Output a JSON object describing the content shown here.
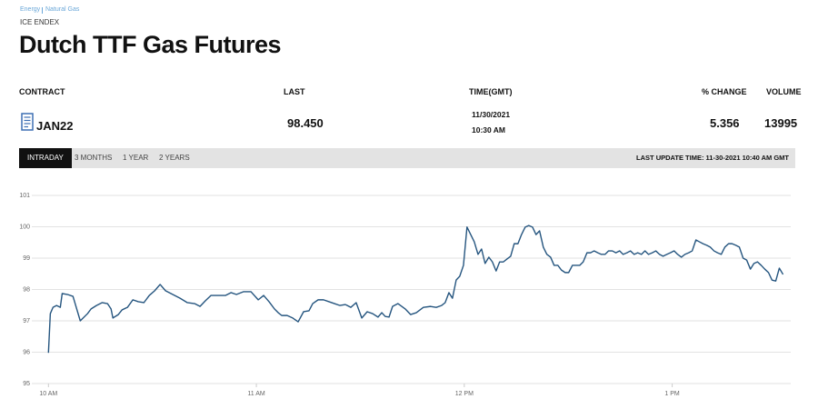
{
  "breadcrumb": [
    "Energy",
    "Natural Gas"
  ],
  "exchange": "ICE ENDEX",
  "title": "Dutch TTF Gas Futures",
  "table": {
    "headers": [
      "CONTRACT",
      "LAST",
      "TIME(GMT)",
      "% CHANGE",
      "VOLUME"
    ],
    "row": {
      "contract": "JAN22",
      "last": "98.450",
      "date": "11/30/2021",
      "time": "10:30 AM",
      "change": "5.356",
      "volume": "13995"
    }
  },
  "tabs": [
    "INTRADAY",
    "3 MONTHS",
    "1 YEAR",
    "2 YEARS"
  ],
  "last_update": "LAST UPDATE TIME: 11-30-2021 10:40 AM GMT",
  "chart_data": {
    "type": "line",
    "color": "#25557f",
    "grid": true,
    "xlim": [
      9.92,
      13.57
    ],
    "ylim": [
      95,
      101
    ],
    "xticks": [
      {
        "value": 10,
        "label": "10 AM"
      },
      {
        "value": 11,
        "label": "11 AM"
      },
      {
        "value": 12,
        "label": "12 PM"
      },
      {
        "value": 13,
        "label": "1 PM"
      }
    ],
    "yticks": [
      95,
      96,
      97,
      98,
      99,
      100,
      101
    ],
    "x": [
      10.0,
      10.009,
      10.022,
      10.039,
      10.057,
      10.066,
      10.092,
      10.118,
      10.153,
      10.188,
      10.205,
      10.231,
      10.258,
      10.284,
      10.301,
      10.31,
      10.336,
      10.354,
      10.38,
      10.406,
      10.432,
      10.459,
      10.485,
      10.511,
      10.537,
      10.563,
      10.598,
      10.633,
      10.668,
      10.703,
      10.729,
      10.755,
      10.782,
      10.817,
      10.852,
      10.878,
      10.904,
      10.939,
      10.974,
      11.009,
      11.035,
      11.061,
      11.087,
      11.105,
      11.122,
      11.148,
      11.175,
      11.201,
      11.227,
      11.253,
      11.271,
      11.297,
      11.323,
      11.349,
      11.376,
      11.402,
      11.428,
      11.454,
      11.48,
      11.507,
      11.533,
      11.559,
      11.585,
      11.603,
      11.62,
      11.638,
      11.655,
      11.681,
      11.716,
      11.742,
      11.769,
      11.803,
      11.838,
      11.865,
      11.891,
      11.908,
      11.926,
      11.943,
      11.961,
      11.978,
      11.996,
      12.013,
      12.031,
      12.048,
      12.066,
      12.083,
      12.1,
      12.118,
      12.135,
      12.153,
      12.17,
      12.188,
      12.205,
      12.223,
      12.24,
      12.258,
      12.275,
      12.293,
      12.31,
      12.328,
      12.345,
      12.362,
      12.38,
      12.397,
      12.415,
      12.432,
      12.45,
      12.467,
      12.485,
      12.502,
      12.52,
      12.537,
      12.555,
      12.572,
      12.59,
      12.607,
      12.624,
      12.642,
      12.659,
      12.677,
      12.694,
      12.712,
      12.729,
      12.747,
      12.764,
      12.782,
      12.799,
      12.817,
      12.834,
      12.852,
      12.869,
      12.886,
      12.904,
      12.921,
      12.939,
      12.956,
      12.974,
      12.991,
      13.009,
      13.026,
      13.044,
      13.061,
      13.079,
      13.096,
      13.114,
      13.131,
      13.148,
      13.166,
      13.183,
      13.201,
      13.218,
      13.236,
      13.253,
      13.271,
      13.288,
      13.306,
      13.323,
      13.341,
      13.358,
      13.376,
      13.393,
      13.41,
      13.428,
      13.445,
      13.463,
      13.48,
      13.498,
      13.515,
      13.533
    ],
    "values": [
      95.98,
      97.23,
      97.43,
      97.49,
      97.43,
      97.87,
      97.84,
      97.78,
      97.0,
      97.23,
      97.38,
      97.49,
      97.58,
      97.55,
      97.38,
      97.09,
      97.2,
      97.35,
      97.43,
      97.67,
      97.61,
      97.58,
      97.81,
      97.96,
      98.16,
      97.96,
      97.84,
      97.72,
      97.58,
      97.55,
      97.46,
      97.64,
      97.81,
      97.81,
      97.81,
      97.9,
      97.84,
      97.93,
      97.93,
      97.67,
      97.81,
      97.61,
      97.38,
      97.26,
      97.17,
      97.17,
      97.09,
      96.97,
      97.29,
      97.32,
      97.55,
      97.67,
      97.67,
      97.61,
      97.55,
      97.49,
      97.52,
      97.43,
      97.58,
      97.09,
      97.29,
      97.23,
      97.12,
      97.26,
      97.14,
      97.12,
      97.46,
      97.55,
      97.38,
      97.2,
      97.26,
      97.43,
      97.46,
      97.43,
      97.49,
      97.58,
      97.9,
      97.72,
      98.3,
      98.42,
      98.77,
      99.99,
      99.75,
      99.52,
      99.12,
      99.29,
      98.83,
      99.03,
      98.88,
      98.59,
      98.88,
      98.88,
      98.97,
      99.06,
      99.46,
      99.46,
      99.75,
      99.99,
      100.04,
      99.99,
      99.75,
      99.87,
      99.35,
      99.12,
      99.03,
      98.77,
      98.77,
      98.62,
      98.54,
      98.54,
      98.77,
      98.77,
      98.77,
      98.88,
      99.17,
      99.17,
      99.23,
      99.17,
      99.12,
      99.12,
      99.23,
      99.23,
      99.17,
      99.23,
      99.12,
      99.17,
      99.23,
      99.12,
      99.17,
      99.12,
      99.23,
      99.12,
      99.17,
      99.23,
      99.12,
      99.06,
      99.12,
      99.17,
      99.23,
      99.12,
      99.03,
      99.12,
      99.17,
      99.23,
      99.58,
      99.52,
      99.46,
      99.41,
      99.35,
      99.23,
      99.17,
      99.12,
      99.35,
      99.46,
      99.46,
      99.41,
      99.35,
      99.0,
      98.94,
      98.65,
      98.83,
      98.88,
      98.77,
      98.65,
      98.54,
      98.3,
      98.27,
      98.68,
      98.48
    ]
  }
}
